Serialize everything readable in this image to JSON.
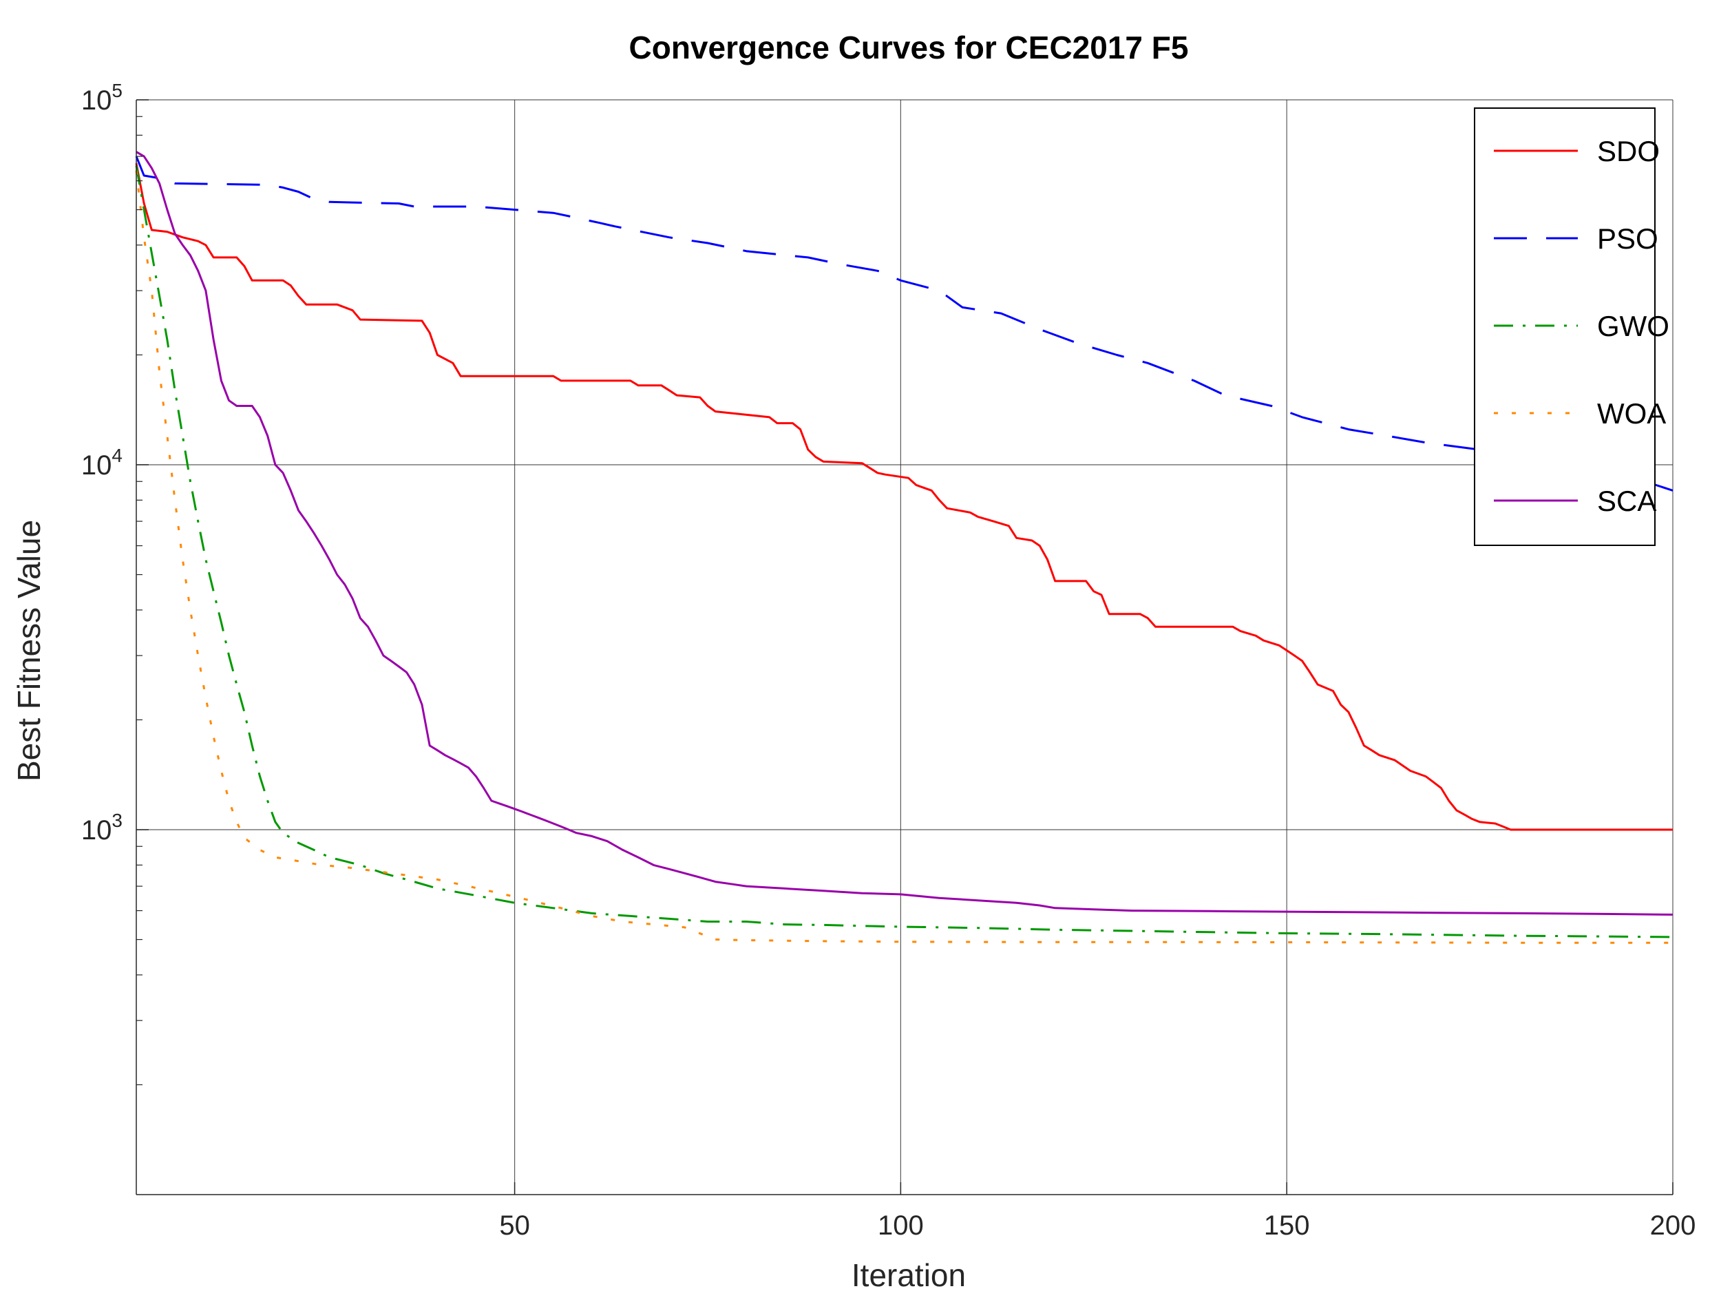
{
  "chart_data": {
    "type": "line",
    "title": "Convergence Curves for CEC2017 F5",
    "xlabel": "Iteration",
    "ylabel": "Best Fitness Value",
    "xlim": [
      1,
      200
    ],
    "ylim": [
      100,
      100000
    ],
    "y_scale": "log",
    "grid": true,
    "legend_position": "top-right",
    "x_ticks": [
      50,
      100,
      150,
      200
    ],
    "x_tick_labels": [
      "50",
      "100",
      "150",
      "200"
    ],
    "y_ticks": [
      1000,
      10000,
      100000
    ],
    "y_tick_labels": [
      {
        "base": "10",
        "exp": "3"
      },
      {
        "base": "10",
        "exp": "4"
      },
      {
        "base": "10",
        "exp": "5"
      }
    ],
    "series": [
      {
        "name": "SDO",
        "color": "#ff0000",
        "style": "solid",
        "points": [
          [
            1,
            67000
          ],
          [
            2,
            52000
          ],
          [
            3,
            44000
          ],
          [
            5,
            43500
          ],
          [
            7,
            42000
          ],
          [
            9,
            41000
          ],
          [
            10,
            40000
          ],
          [
            11,
            37000
          ],
          [
            14,
            37000
          ],
          [
            15,
            35000
          ],
          [
            16,
            32000
          ],
          [
            20,
            32000
          ],
          [
            21,
            31000
          ],
          [
            22,
            29000
          ],
          [
            23,
            27500
          ],
          [
            27,
            27500
          ],
          [
            29,
            26500
          ],
          [
            30,
            25000
          ],
          [
            38,
            24800
          ],
          [
            39,
            23000
          ],
          [
            40,
            20000
          ],
          [
            42,
            19000
          ],
          [
            43,
            17500
          ],
          [
            55,
            17500
          ],
          [
            56,
            17000
          ],
          [
            65,
            17000
          ],
          [
            66,
            16500
          ],
          [
            69,
            16500
          ],
          [
            70,
            16000
          ],
          [
            71,
            15500
          ],
          [
            74,
            15300
          ],
          [
            75,
            14500
          ],
          [
            76,
            14000
          ],
          [
            83,
            13500
          ],
          [
            84,
            13000
          ],
          [
            86,
            13000
          ],
          [
            87,
            12500
          ],
          [
            88,
            11000
          ],
          [
            89,
            10500
          ],
          [
            90,
            10200
          ],
          [
            95,
            10100
          ],
          [
            96,
            9800
          ],
          [
            97,
            9500
          ],
          [
            98,
            9400
          ],
          [
            101,
            9200
          ],
          [
            102,
            8800
          ],
          [
            104,
            8500
          ],
          [
            105,
            8000
          ],
          [
            106,
            7600
          ],
          [
            109,
            7400
          ],
          [
            110,
            7200
          ],
          [
            112,
            7000
          ],
          [
            114,
            6800
          ],
          [
            115,
            6300
          ],
          [
            117,
            6200
          ],
          [
            118,
            6000
          ],
          [
            119,
            5500
          ],
          [
            120,
            4800
          ],
          [
            124,
            4800
          ],
          [
            125,
            4500
          ],
          [
            126,
            4400
          ],
          [
            127,
            3900
          ],
          [
            131,
            3900
          ],
          [
            132,
            3800
          ],
          [
            133,
            3600
          ],
          [
            140,
            3600
          ],
          [
            143,
            3600
          ],
          [
            144,
            3500
          ],
          [
            146,
            3400
          ],
          [
            147,
            3300
          ],
          [
            149,
            3200
          ],
          [
            150,
            3100
          ],
          [
            151,
            3000
          ],
          [
            152,
            2900
          ],
          [
            153,
            2700
          ],
          [
            154,
            2500
          ],
          [
            156,
            2400
          ],
          [
            157,
            2200
          ],
          [
            158,
            2100
          ],
          [
            159,
            1900
          ],
          [
            160,
            1700
          ],
          [
            161,
            1650
          ],
          [
            162,
            1600
          ],
          [
            164,
            1550
          ],
          [
            165,
            1500
          ],
          [
            166,
            1450
          ],
          [
            168,
            1400
          ],
          [
            169,
            1350
          ],
          [
            170,
            1300
          ],
          [
            171,
            1200
          ],
          [
            172,
            1130
          ],
          [
            173,
            1100
          ],
          [
            174,
            1070
          ],
          [
            175,
            1050
          ],
          [
            177,
            1040
          ],
          [
            178,
            1020
          ],
          [
            179,
            1000
          ],
          [
            200,
            1000
          ]
        ]
      },
      {
        "name": "PSO",
        "color": "#0000ff",
        "style": "dashed",
        "points": [
          [
            1,
            70000
          ],
          [
            2,
            62000
          ],
          [
            4,
            61000
          ],
          [
            6,
            59000
          ],
          [
            18,
            58500
          ],
          [
            20,
            57500
          ],
          [
            22,
            56000
          ],
          [
            24,
            53500
          ],
          [
            26,
            52500
          ],
          [
            35,
            52000
          ],
          [
            37,
            51000
          ],
          [
            45,
            51000
          ],
          [
            55,
            49000
          ],
          [
            57,
            48000
          ],
          [
            59,
            47000
          ],
          [
            61,
            46000
          ],
          [
            63,
            45000
          ],
          [
            70,
            42000
          ],
          [
            75,
            40500
          ],
          [
            80,
            38500
          ],
          [
            88,
            37000
          ],
          [
            92,
            35500
          ],
          [
            97,
            34000
          ],
          [
            100,
            32000
          ],
          [
            105,
            30000
          ],
          [
            108,
            27000
          ],
          [
            113,
            26000
          ],
          [
            118,
            23500
          ],
          [
            123,
            21500
          ],
          [
            128,
            20000
          ],
          [
            132,
            19000
          ],
          [
            138,
            17000
          ],
          [
            142,
            15500
          ],
          [
            148,
            14500
          ],
          [
            152,
            13500
          ],
          [
            158,
            12500
          ],
          [
            163,
            12000
          ],
          [
            168,
            11500
          ],
          [
            175,
            11000
          ],
          [
            180,
            10500
          ],
          [
            185,
            10000
          ],
          [
            190,
            9500
          ],
          [
            195,
            9200
          ],
          [
            200,
            8500
          ]
        ]
      },
      {
        "name": "GWO",
        "color": "#009900",
        "style": "dashdot",
        "points": [
          [
            1,
            66000
          ],
          [
            2,
            50000
          ],
          [
            3,
            38000
          ],
          [
            4,
            29000
          ],
          [
            5,
            22000
          ],
          [
            6,
            16000
          ],
          [
            7,
            12000
          ],
          [
            8,
            9000
          ],
          [
            9,
            7000
          ],
          [
            10,
            5500
          ],
          [
            11,
            4500
          ],
          [
            12,
            3700
          ],
          [
            13,
            3000
          ],
          [
            14,
            2500
          ],
          [
            15,
            2100
          ],
          [
            16,
            1700
          ],
          [
            17,
            1400
          ],
          [
            18,
            1200
          ],
          [
            19,
            1050
          ],
          [
            20,
            980
          ],
          [
            22,
            920
          ],
          [
            24,
            880
          ],
          [
            26,
            840
          ],
          [
            28,
            820
          ],
          [
            30,
            800
          ],
          [
            33,
            760
          ],
          [
            36,
            730
          ],
          [
            40,
            690
          ],
          [
            45,
            660
          ],
          [
            50,
            630
          ],
          [
            55,
            610
          ],
          [
            60,
            590
          ],
          [
            65,
            580
          ],
          [
            70,
            570
          ],
          [
            75,
            560
          ],
          [
            80,
            560
          ],
          [
            85,
            550
          ],
          [
            90,
            548
          ],
          [
            95,
            545
          ],
          [
            100,
            542
          ],
          [
            110,
            538
          ],
          [
            120,
            532
          ],
          [
            130,
            528
          ],
          [
            140,
            524
          ],
          [
            150,
            520
          ],
          [
            160,
            518
          ],
          [
            170,
            515
          ],
          [
            180,
            512
          ],
          [
            190,
            510
          ],
          [
            200,
            508
          ]
        ]
      },
      {
        "name": "WOA",
        "color": "#ff8800",
        "style": "dotted",
        "points": [
          [
            1,
            64000
          ],
          [
            2,
            42000
          ],
          [
            3,
            30000
          ],
          [
            4,
            18000
          ],
          [
            5,
            12000
          ],
          [
            6,
            8000
          ],
          [
            7,
            5500
          ],
          [
            8,
            4000
          ],
          [
            9,
            3000
          ],
          [
            10,
            2300
          ],
          [
            11,
            1800
          ],
          [
            12,
            1450
          ],
          [
            13,
            1200
          ],
          [
            14,
            1050
          ],
          [
            15,
            950
          ],
          [
            17,
            880
          ],
          [
            19,
            840
          ],
          [
            22,
            820
          ],
          [
            25,
            800
          ],
          [
            28,
            790
          ],
          [
            32,
            770
          ],
          [
            36,
            750
          ],
          [
            40,
            730
          ],
          [
            44,
            700
          ],
          [
            48,
            670
          ],
          [
            52,
            640
          ],
          [
            56,
            610
          ],
          [
            60,
            580
          ],
          [
            64,
            560
          ],
          [
            68,
            550
          ],
          [
            72,
            540
          ],
          [
            76,
            500
          ],
          [
            80,
            498
          ],
          [
            90,
            495
          ],
          [
            100,
            493
          ],
          [
            120,
            492
          ],
          [
            140,
            492
          ],
          [
            160,
            491
          ],
          [
            180,
            490
          ],
          [
            200,
            490
          ]
        ]
      },
      {
        "name": "SCA",
        "color": "#9900aa",
        "style": "solid",
        "points": [
          [
            1,
            72000
          ],
          [
            2,
            70000
          ],
          [
            3,
            65000
          ],
          [
            4,
            59000
          ],
          [
            5,
            50000
          ],
          [
            6,
            43000
          ],
          [
            7,
            40000
          ],
          [
            8,
            37500
          ],
          [
            9,
            34000
          ],
          [
            10,
            30000
          ],
          [
            11,
            22000
          ],
          [
            12,
            17000
          ],
          [
            13,
            15000
          ],
          [
            14,
            14500
          ],
          [
            16,
            14500
          ],
          [
            17,
            13500
          ],
          [
            18,
            12000
          ],
          [
            19,
            10000
          ],
          [
            20,
            9500
          ],
          [
            21,
            8500
          ],
          [
            22,
            7500
          ],
          [
            23,
            7000
          ],
          [
            24,
            6500
          ],
          [
            25,
            6000
          ],
          [
            26,
            5500
          ],
          [
            27,
            5000
          ],
          [
            28,
            4700
          ],
          [
            29,
            4300
          ],
          [
            30,
            3800
          ],
          [
            31,
            3600
          ],
          [
            32,
            3300
          ],
          [
            33,
            3000
          ],
          [
            34,
            2900
          ],
          [
            35,
            2800
          ],
          [
            36,
            2700
          ],
          [
            37,
            2500
          ],
          [
            38,
            2200
          ],
          [
            39,
            1700
          ],
          [
            40,
            1650
          ],
          [
            41,
            1600
          ],
          [
            42,
            1560
          ],
          [
            43,
            1520
          ],
          [
            44,
            1480
          ],
          [
            45,
            1400
          ],
          [
            46,
            1300
          ],
          [
            47,
            1200
          ],
          [
            48,
            1180
          ],
          [
            49,
            1160
          ],
          [
            50,
            1140
          ],
          [
            51,
            1120
          ],
          [
            52,
            1100
          ],
          [
            53,
            1080
          ],
          [
            54,
            1060
          ],
          [
            55,
            1040
          ],
          [
            56,
            1020
          ],
          [
            57,
            1000
          ],
          [
            58,
            980
          ],
          [
            60,
            960
          ],
          [
            62,
            930
          ],
          [
            64,
            880
          ],
          [
            66,
            840
          ],
          [
            68,
            800
          ],
          [
            70,
            780
          ],
          [
            72,
            760
          ],
          [
            74,
            740
          ],
          [
            76,
            720
          ],
          [
            78,
            710
          ],
          [
            80,
            700
          ],
          [
            85,
            690
          ],
          [
            90,
            680
          ],
          [
            95,
            670
          ],
          [
            100,
            665
          ],
          [
            105,
            650
          ],
          [
            110,
            640
          ],
          [
            115,
            630
          ],
          [
            118,
            620
          ],
          [
            120,
            610
          ],
          [
            125,
            605
          ],
          [
            130,
            600
          ],
          [
            140,
            598
          ],
          [
            150,
            596
          ],
          [
            160,
            594
          ],
          [
            170,
            592
          ],
          [
            180,
            590
          ],
          [
            190,
            588
          ],
          [
            200,
            585
          ]
        ]
      }
    ]
  }
}
